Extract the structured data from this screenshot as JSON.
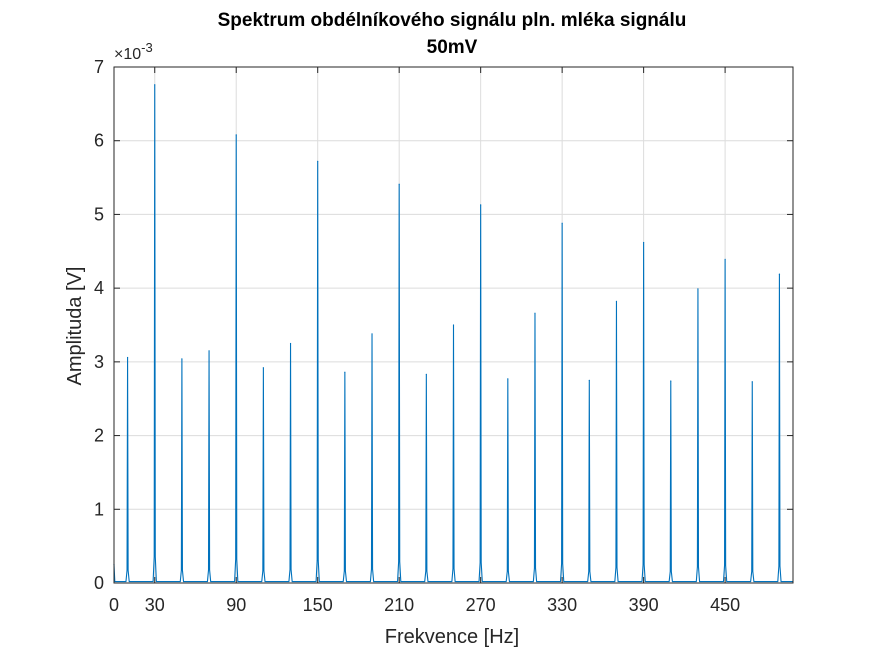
{
  "chart_data": {
    "type": "line",
    "title": "Spektrum obdélníkového signálu pln. mléka signálu",
    "subtitle": "50mV",
    "xlabel": "Frekvence [Hz]",
    "ylabel": "Amplituda [V]",
    "y_exponent_label": "×10",
    "y_exponent_power": "-3",
    "y_scale_factor": 0.001,
    "xlim": [
      0,
      500
    ],
    "ylim": [
      0,
      0.007
    ],
    "x_ticks": [
      0,
      30,
      90,
      150,
      210,
      270,
      330,
      390,
      450
    ],
    "x_tick_labels": [
      "0",
      "30",
      "90",
      "150",
      "210",
      "270",
      "330",
      "390",
      "450"
    ],
    "y_ticks": [
      0,
      0.001,
      0.002,
      0.003,
      0.004,
      0.005,
      0.006,
      0.007
    ],
    "y_tick_labels": [
      "0",
      "1",
      "2",
      "3",
      "4",
      "5",
      "6",
      "7"
    ],
    "grid": true,
    "line_color": "#0072bd",
    "series": [
      {
        "peaks_x": [
          0,
          10,
          30,
          50,
          70,
          90,
          110,
          130,
          150,
          170,
          190,
          210,
          230,
          250,
          270,
          290,
          310,
          330,
          350,
          370,
          390,
          410,
          430,
          450,
          470,
          490
        ],
        "peaks_y": [
          0.00025,
          0.00306,
          0.00676,
          0.00304,
          0.00315,
          0.00608,
          0.00292,
          0.00325,
          0.00572,
          0.00286,
          0.00338,
          0.00541,
          0.00283,
          0.0035,
          0.00513,
          0.00277,
          0.00366,
          0.00488,
          0.00275,
          0.00382,
          0.00462,
          0.00274,
          0.00399,
          0.00439,
          0.00273,
          0.00419
        ],
        "baseline": 2e-05
      }
    ]
  }
}
